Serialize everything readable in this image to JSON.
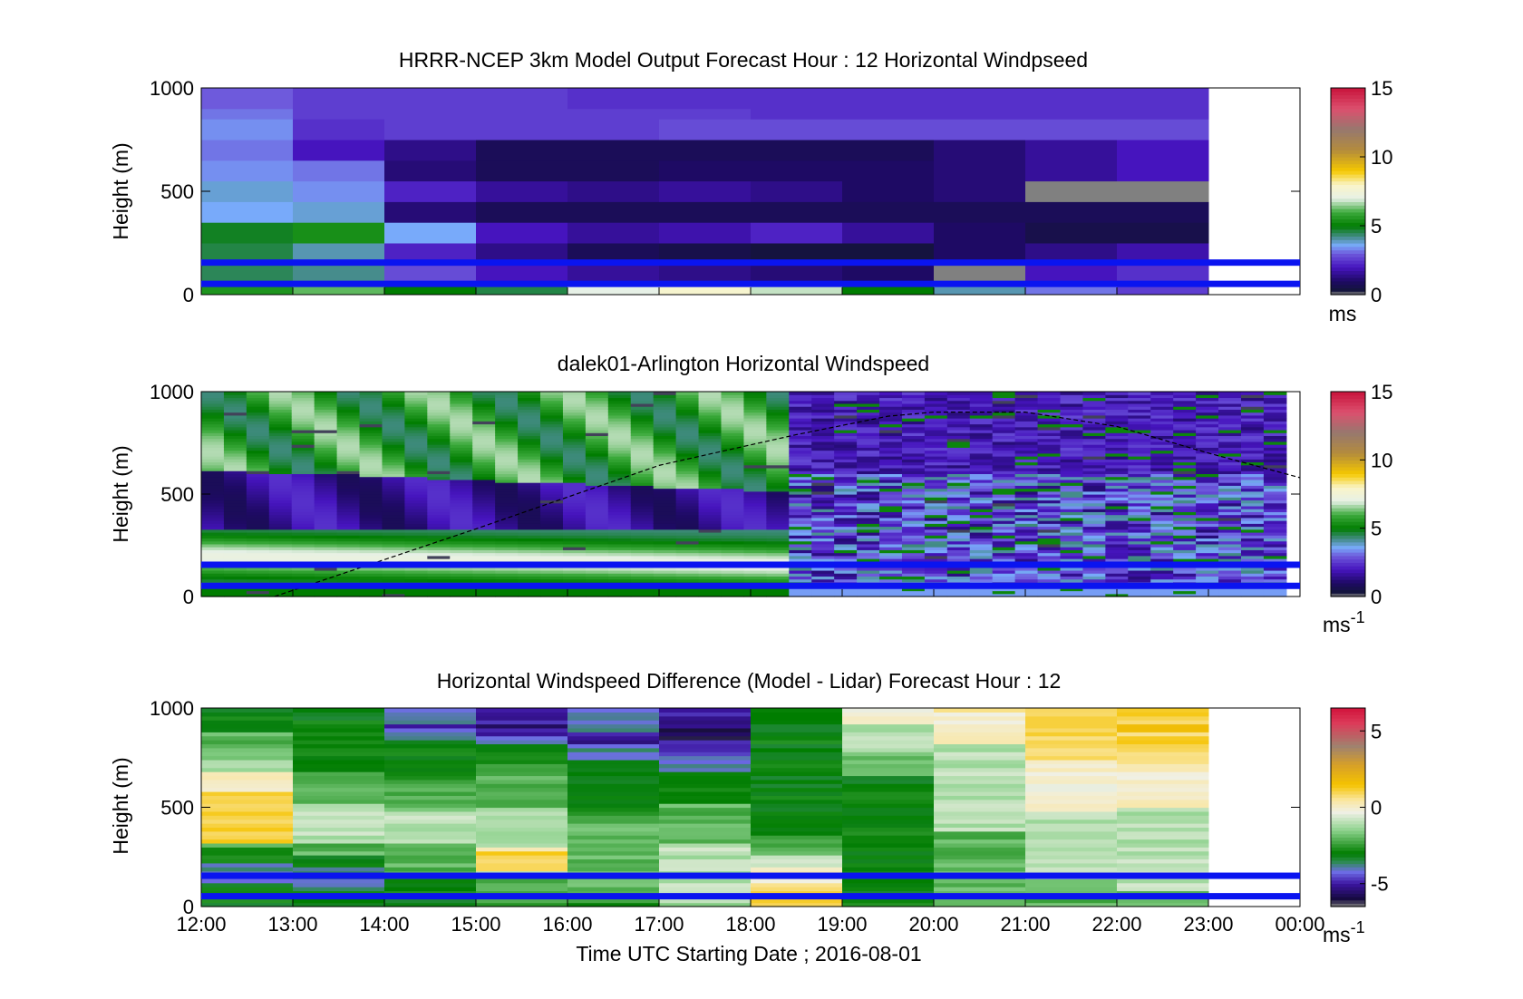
{
  "figure": {
    "xlabel": "Time UTC  Starting Date ; 2016-08-01",
    "xticks": [
      "12:00",
      "13:00",
      "14:00",
      "15:00",
      "16:00",
      "17:00",
      "18:00",
      "19:00",
      "20:00",
      "21:00",
      "22:00",
      "23:00",
      "00:00"
    ]
  },
  "colors": {
    "band_line": "#0a14f0",
    "frame": "#000000"
  },
  "chart_data": [
    {
      "type": "heatmap",
      "title": "HRRR-NCEP 3km Model Output   Forecast Hour : 12 Horizontal Windpseed",
      "ylabel": "Height (m)",
      "yticks": [
        "0",
        "500",
        "1000"
      ],
      "ylim": [
        0,
        1000
      ],
      "colorbar": {
        "ticks": [
          "0",
          "5",
          "10",
          "15"
        ],
        "range": [
          0,
          15
        ],
        "unit": "ms"
      },
      "bands_m": [
        52,
        155
      ],
      "x_hours": [
        12,
        13,
        14,
        15,
        16,
        17,
        18,
        19,
        20,
        21,
        22,
        23
      ],
      "note_columns_top_m": [
        0,
        100,
        200,
        300,
        400,
        500,
        600,
        700,
        800,
        900,
        1000
      ],
      "values": [
        [
          5.5,
          6.2,
          5.0,
          4.6,
          7.0,
          7.8,
          6.8,
          5.0,
          4.0,
          3.2,
          2.6
        ],
        [
          4.5,
          4.2,
          2.8,
          2.0,
          1.6,
          1.4,
          1.2,
          1.0,
          "nan",
          2.0,
          2.4
        ],
        [
          4.6,
          4.0,
          2.2,
          1.4,
          0.8,
          0.6,
          0.4,
          0.4,
          1.0,
          1.4,
          1.8
        ],
        [
          4.8,
          5.4,
          3.6,
          2.0,
          1.6,
          1.8,
          2.2,
          1.6,
          1.0,
          0.6,
          0.6
        ],
        [
          3.6,
          3.8,
          1.2,
          0.8,
          0.8,
          0.8,
          0.8,
          0.8,
          0.8,
          0.8,
          0.8
        ],
        [
          3.8,
          3.4,
          2.2,
          1.6,
          1.4,
          1.6,
          1.4,
          1.0,
          1.2,
          "nan",
          "nan"
        ],
        [
          3.4,
          3.2,
          1.2,
          0.8,
          0.8,
          1.0,
          1.0,
          1.0,
          1.2,
          1.6,
          2.0
        ],
        [
          3.2,
          2.0,
          1.4,
          0.8,
          0.8,
          0.8,
          0.8,
          0.8,
          1.2,
          1.6,
          2.0
        ],
        [
          3.4,
          2.4,
          2.6,
          2.6,
          2.6,
          2.8,
          2.8,
          2.8,
          2.8,
          2.8,
          2.8
        ],
        [
          3.2,
          2.6,
          2.6,
          2.6,
          2.6,
          2.6,
          2.4,
          2.4,
          2.4,
          2.4,
          2.4
        ],
        [
          3.0,
          2.6,
          2.6,
          2.6,
          2.4,
          2.4,
          2.4,
          2.4,
          2.4,
          2.4,
          2.4
        ]
      ]
    },
    {
      "type": "heatmap",
      "title": "dalek01-Arlington  Horizontal Windspeed",
      "ylabel": "Height (m)",
      "yticks": [
        "0",
        "500",
        "1000"
      ],
      "ylim": [
        0,
        1000
      ],
      "colorbar": {
        "ticks": [
          "0",
          "5",
          "10",
          "15"
        ],
        "range": [
          0,
          15
        ],
        "unit": "ms",
        "unit_sup": "-1"
      },
      "bands_m": [
        52,
        155
      ],
      "x_range_hours": [
        12.0,
        23.85
      ],
      "boundary_layer_curve_m": [
        [
          12.8,
          0
        ],
        [
          15.0,
          330
        ],
        [
          17.0,
          640
        ],
        [
          18.5,
          790
        ],
        [
          19.5,
          880
        ],
        [
          20.0,
          900
        ],
        [
          21.0,
          900
        ],
        [
          22.0,
          830
        ],
        [
          23.0,
          700
        ],
        [
          24.0,
          580
        ]
      ]
    },
    {
      "type": "heatmap",
      "title": "Horizontal Windspeed Difference (Model - Lidar) Forecast Hour : 12",
      "ylabel": "Height (m)",
      "yticks": [
        "0",
        "500",
        "1000"
      ],
      "ylim": [
        0,
        1000
      ],
      "colorbar": {
        "ticks": [
          "-5",
          "0",
          "5"
        ],
        "range": [
          -6.5,
          6.5
        ],
        "unit": "ms",
        "unit_sup": "-1"
      },
      "bands_m": [
        52,
        155
      ],
      "x_hours": [
        12,
        13,
        14,
        15,
        16,
        17,
        18,
        19,
        20,
        21,
        22,
        23
      ],
      "profiles": [
        [
          [
            0,
            -3.2
          ],
          [
            150,
            -3.6
          ],
          [
            300,
            -3.4
          ],
          [
            330,
            0.5
          ],
          [
            450,
            1.0
          ],
          [
            550,
            0.8
          ],
          [
            650,
            0.0
          ],
          [
            760,
            -2.0
          ],
          [
            1000,
            -3.0
          ]
        ],
        [
          [
            0,
            -2.6
          ],
          [
            150,
            -4.2
          ],
          [
            300,
            -1.8
          ],
          [
            420,
            -0.5
          ],
          [
            550,
            -1.8
          ],
          [
            700,
            -2.6
          ],
          [
            1000,
            -3.0
          ]
        ],
        [
          [
            0,
            -3.0
          ],
          [
            200,
            -2.4
          ],
          [
            400,
            -1.0
          ],
          [
            600,
            -2.4
          ],
          [
            800,
            -3.0
          ],
          [
            900,
            -4.6
          ],
          [
            1000,
            -4.0
          ]
        ],
        [
          [
            0,
            -2.6
          ],
          [
            150,
            -2.0
          ],
          [
            200,
            1.2
          ],
          [
            280,
            0.8
          ],
          [
            300,
            -1.0
          ],
          [
            550,
            -1.6
          ],
          [
            800,
            -3.0
          ],
          [
            900,
            -5.6
          ],
          [
            1000,
            -5.2
          ]
        ],
        [
          [
            0,
            -2.6
          ],
          [
            200,
            -1.6
          ],
          [
            400,
            -2.4
          ],
          [
            700,
            -3.0
          ],
          [
            850,
            -4.8
          ],
          [
            1000,
            -3.6
          ]
        ],
        [
          [
            0,
            -1.6
          ],
          [
            200,
            -0.6
          ],
          [
            400,
            -2.0
          ],
          [
            600,
            -2.8
          ],
          [
            750,
            -4.2
          ],
          [
            850,
            -5.8
          ],
          [
            1000,
            -5.0
          ]
        ],
        [
          [
            0,
            0.8
          ],
          [
            150,
            0.4
          ],
          [
            300,
            -2.4
          ],
          [
            600,
            -3.0
          ],
          [
            1000,
            -3.0
          ]
        ],
        [
          [
            0,
            -3.0
          ],
          [
            600,
            -3.0
          ],
          [
            700,
            -2.2
          ],
          [
            850,
            -1.0
          ],
          [
            950,
            -0.2
          ],
          [
            1000,
            0.6
          ]
        ],
        [
          [
            0,
            -2.4
          ],
          [
            300,
            -1.6
          ],
          [
            600,
            -1.2
          ],
          [
            800,
            -0.8
          ],
          [
            900,
            0.2
          ],
          [
            1000,
            0.6
          ]
        ],
        [
          [
            0,
            -2.0
          ],
          [
            300,
            -1.0
          ],
          [
            600,
            -0.2
          ],
          [
            800,
            0.8
          ],
          [
            1000,
            0.6
          ]
        ],
        [
          [
            0,
            -1.6
          ],
          [
            300,
            -1.2
          ],
          [
            600,
            -0.2
          ],
          [
            800,
            1.0
          ],
          [
            900,
            1.6
          ],
          [
            1000,
            1.0
          ]
        ]
      ]
    }
  ]
}
